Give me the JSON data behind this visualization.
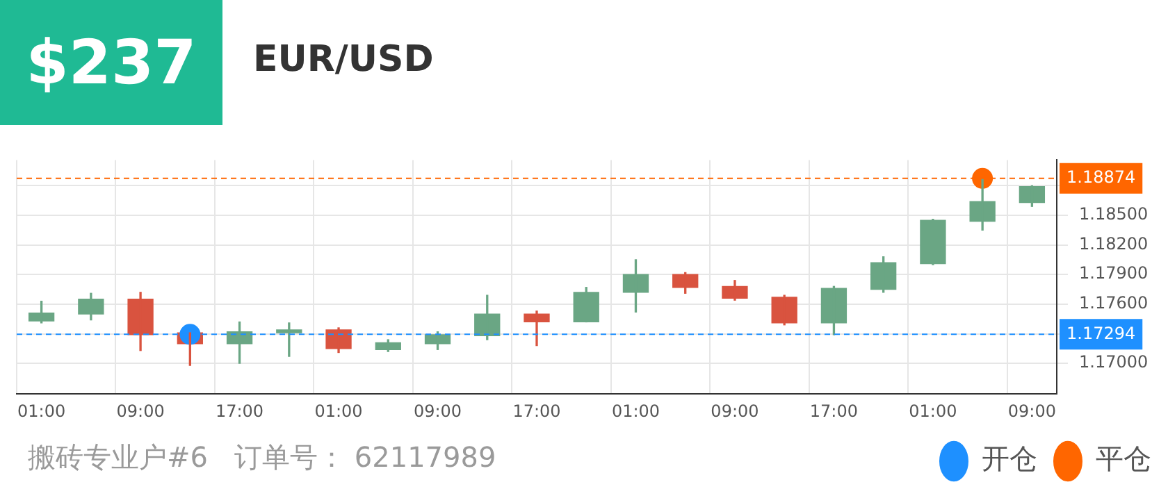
{
  "chart_data": {
    "type": "candlestick",
    "title": "EUR/USD",
    "subtitle": "$237",
    "categories": [
      "01:00",
      null,
      "09:00",
      null,
      "17:00",
      null,
      "01:00",
      null,
      "09:00",
      null,
      "17:00",
      null,
      "01:00",
      null,
      "09:00",
      null,
      "17:00",
      null,
      "01:00",
      null,
      "09:00"
    ],
    "ohlc": [
      [
        1.1743,
        1.1763,
        1.1741,
        1.1751
      ],
      [
        1.175,
        1.1771,
        1.1744,
        1.1765
      ],
      [
        1.1765,
        1.1772,
        1.1713,
        1.1729
      ],
      [
        1.1731,
        1.1731,
        1.1698,
        1.172
      ],
      [
        1.172,
        1.1742,
        1.17,
        1.1732
      ],
      [
        1.1731,
        1.1741,
        1.1707,
        1.1734
      ],
      [
        1.1734,
        1.1736,
        1.1711,
        1.1715
      ],
      [
        1.1714,
        1.1724,
        1.1712,
        1.1721
      ],
      [
        1.172,
        1.1732,
        1.1714,
        1.1729
      ],
      [
        1.1728,
        1.1769,
        1.1724,
        1.175
      ],
      [
        1.175,
        1.1753,
        1.1718,
        1.1742
      ],
      [
        1.1742,
        1.1777,
        1.1742,
        1.1772
      ],
      [
        1.1772,
        1.1805,
        1.1752,
        1.179
      ],
      [
        1.179,
        1.1792,
        1.1771,
        1.1777
      ],
      [
        1.1778,
        1.1784,
        1.1764,
        1.1766
      ],
      [
        1.1767,
        1.1769,
        1.1739,
        1.1741
      ],
      [
        1.1741,
        1.1778,
        1.1729,
        1.1776
      ],
      [
        1.1775,
        1.1808,
        1.1772,
        1.1802
      ],
      [
        1.1801,
        1.1846,
        1.18,
        1.1845
      ],
      [
        1.1844,
        1.1887,
        1.1835,
        1.1864
      ],
      [
        1.1863,
        1.188,
        1.1859,
        1.1879
      ]
    ],
    "colors": [
      "#6aa684",
      "#6aa684",
      "#d9533f",
      "#d9533f",
      "#6aa684",
      "#6aa684",
      "#d9533f",
      "#6aa684",
      "#6aa684",
      "#6aa684",
      "#d9533f",
      "#6aa684",
      "#6aa684",
      "#d9533f",
      "#d9533f",
      "#d9533f",
      "#6aa684",
      "#6aa684",
      "#6aa684",
      "#6aa684",
      "#6aa684"
    ],
    "series": [
      {
        "name": "开仓",
        "type": "scatter",
        "color": "#1e90ff",
        "values": [
          null,
          null,
          null,
          1.17294,
          null,
          null,
          null,
          null,
          null,
          null,
          null,
          null,
          null,
          null,
          null,
          null,
          null,
          null,
          null,
          null,
          null
        ]
      },
      {
        "name": "平仓",
        "type": "scatter",
        "color": "#ff6600",
        "values": [
          null,
          null,
          null,
          null,
          null,
          null,
          null,
          null,
          null,
          null,
          null,
          null,
          null,
          null,
          null,
          null,
          null,
          null,
          null,
          1.18874,
          null
        ]
      }
    ],
    "ylim": [
      1.1669,
      1.1906
    ],
    "yticks": [
      {
        "value": 1.17,
        "label": "1.17000"
      },
      {
        "value": 1.173,
        "label": null
      },
      {
        "value": 1.176,
        "label": "1.17600"
      },
      {
        "value": 1.179,
        "label": "1.17900"
      },
      {
        "value": 1.182,
        "label": "1.18200"
      },
      {
        "value": 1.185,
        "label": "1.18500"
      },
      {
        "value": 1.188,
        "label": null
      }
    ],
    "ref_lines": [
      {
        "axis": "y",
        "value": 1.17294,
        "label": "1.17294",
        "color": "#1e90ff",
        "line_style": "dashed"
      },
      {
        "axis": "y",
        "value": 1.18874,
        "label": "1.18874",
        "color": "#ff6600",
        "line_style": "dashed"
      }
    ],
    "annotations": [
      "搬砖专业户#6   订单号： 62117989"
    ],
    "grid": true,
    "legend": "bottom right",
    "marker": "circle"
  }
}
